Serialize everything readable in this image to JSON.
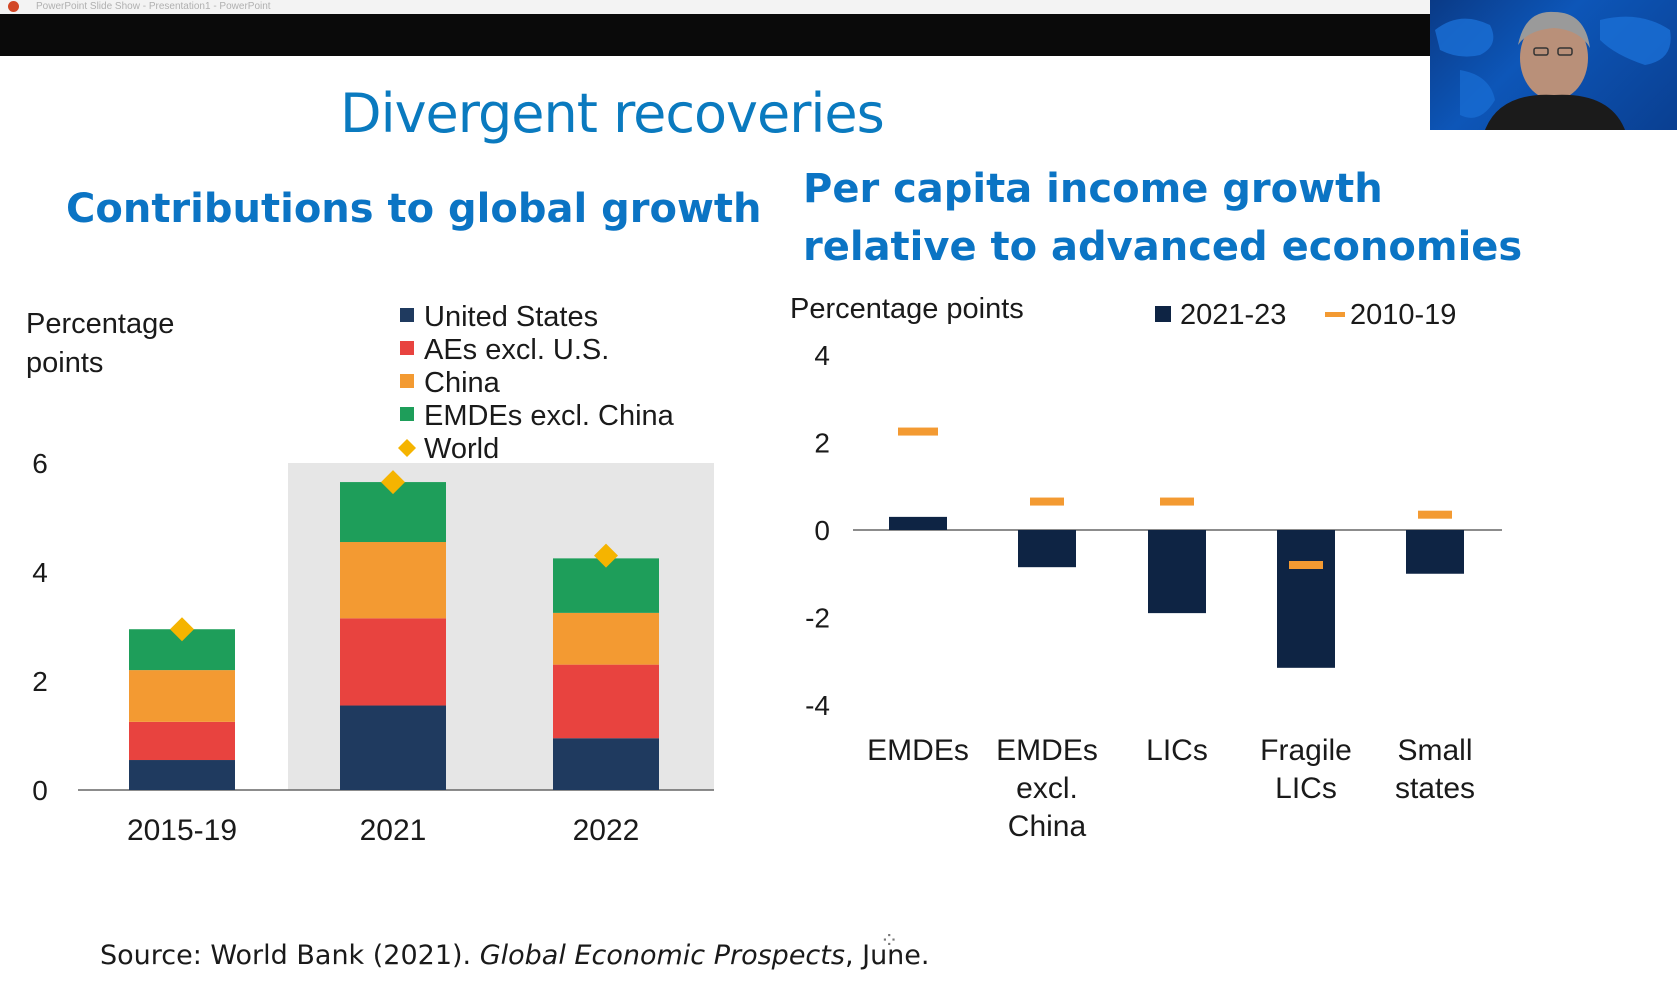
{
  "window": {
    "title": "PowerPoint Slide Show - Presentation1 - PowerPoint"
  },
  "slide": {
    "title": "Divergent recoveries",
    "left_panel_title": "Contributions to global growth",
    "right_panel_title_line1": "Per capita income growth",
    "right_panel_title_line2": "relative to advanced economies",
    "source_prefix": "Source: World Bank (2021). ",
    "source_italic": "Global Economic Prospects",
    "source_suffix": ", June."
  },
  "icons": {
    "app": "powerpoint-icon",
    "webcam": "presenter-video-feed",
    "cursor": "pointer-cursor-icon"
  },
  "colors": {
    "title_blue": "#0a7abf",
    "navy": "#1f3a5f",
    "red": "#e8433f",
    "orange": "#f39a32",
    "green": "#1e9e5a",
    "diamond": "#f5b400",
    "dark_navy": "#0e2444",
    "accent_orange": "#f39a32",
    "highlight_grey": "#e6e6e6"
  },
  "chart_data": [
    {
      "type": "bar",
      "stacked": true,
      "ylabel_line1": "Percentage",
      "ylabel_line2": "points",
      "categories": [
        "2015-19",
        "2021",
        "2022"
      ],
      "ylim": [
        0,
        6
      ],
      "yticks": [
        "0",
        "2",
        "4",
        "6"
      ],
      "highlighted_categories": [
        "2021",
        "2022"
      ],
      "legend_placement": "top",
      "series": [
        {
          "name": "United States",
          "values": [
            0.55,
            1.55,
            0.95
          ]
        },
        {
          "name": "AEs excl. U.S.",
          "values": [
            0.7,
            1.6,
            1.35
          ]
        },
        {
          "name": "China",
          "values": [
            0.95,
            1.4,
            0.95
          ]
        },
        {
          "name": "EMDEs excl. China",
          "values": [
            0.75,
            1.1,
            1.0
          ]
        }
      ],
      "markers": {
        "name": "World",
        "values": [
          2.95,
          5.65,
          4.3
        ]
      }
    },
    {
      "type": "bar",
      "ylabel": "Percentage points",
      "categories": [
        "EMDEs",
        "EMDEs excl. China",
        "LICs",
        "Fragile LICs",
        "Small states"
      ],
      "category_lines": [
        [
          "EMDEs"
        ],
        [
          "EMDEs",
          "excl.",
          "China"
        ],
        [
          "LICs"
        ],
        [
          "Fragile",
          "LICs"
        ],
        [
          "Small",
          "states"
        ]
      ],
      "ylim": [
        -4,
        4
      ],
      "yticks": [
        "-4",
        "-2",
        "0",
        "2",
        "4"
      ],
      "legend_placement": "top-right",
      "series": [
        {
          "name": "2021-23",
          "values": [
            0.3,
            -0.85,
            -1.9,
            -3.15,
            -1.0
          ]
        },
        {
          "name": "2010-19",
          "values": [
            2.25,
            0.65,
            0.65,
            -0.8,
            0.35
          ]
        }
      ]
    }
  ]
}
